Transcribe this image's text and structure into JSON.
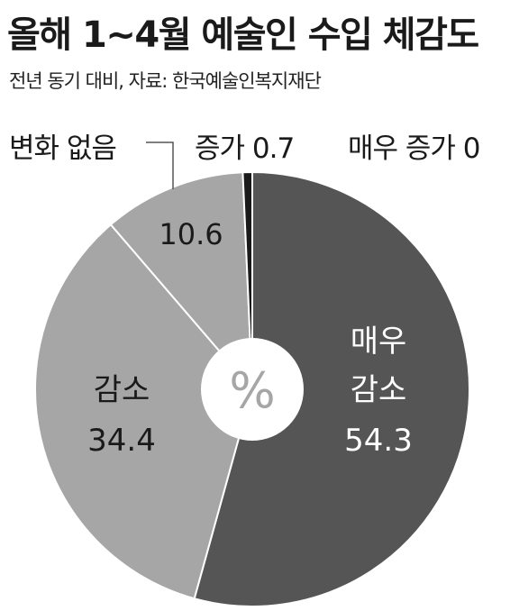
{
  "title": "올해 1~4월 예술인 수입 체감도",
  "subtitle": "전년 동기 대비, 자료: 한국예술인복지재단",
  "chart_data": {
    "type": "pie",
    "center_label": "%",
    "slices": [
      {
        "label": "매우 증가",
        "label_lines": [
          "매우 증가 0"
        ],
        "value": 0,
        "color": "#1a1a1a",
        "label_color": "#1a1a1a"
      },
      {
        "label": "매우 감소",
        "label_lines": [
          "매우",
          "감소",
          "54.3"
        ],
        "value": 54.3,
        "color": "#555555",
        "label_color": "#ffffff"
      },
      {
        "label": "감소",
        "label_lines": [
          "감소",
          "34.4"
        ],
        "value": 34.4,
        "color": "#a6a6a6",
        "label_color": "#1a1a1a"
      },
      {
        "label": "변화 없음",
        "label_lines": [
          "변화 없음"
        ],
        "value": 10.6,
        "value_label": "10.6",
        "color": "#a6a6a6",
        "label_color": "#1a1a1a"
      },
      {
        "label": "증가",
        "label_lines": [
          "증가 0.7"
        ],
        "value": 0.7,
        "color": "#1a1a1a",
        "label_color": "#1a1a1a"
      }
    ]
  }
}
